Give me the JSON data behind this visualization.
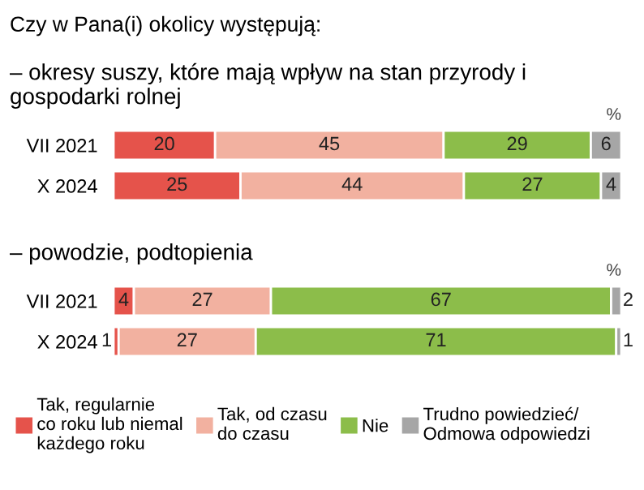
{
  "chart_data": [
    {
      "type": "bar",
      "orientation": "horizontal",
      "stacked": true,
      "data_labels": true,
      "tick_labels": "y",
      "legend": false,
      "title": "– okresy suszy, które mają wpływ na stan przyrody i gospodarki rolnej",
      "annotations": [
        "Czy w Pana(i) okolicy występują:",
        "%"
      ],
      "categories": [
        "VII 2021",
        "X 2024"
      ],
      "series": [
        {
          "color": "#e5534b",
          "values": [
            20,
            25
          ]
        },
        {
          "color": "#f2b1a0",
          "values": [
            45,
            44
          ]
        },
        {
          "color": "#8cbd4a",
          "values": [
            29,
            27
          ]
        },
        {
          "color": "#a6a6a6",
          "values": [
            6,
            4
          ]
        }
      ]
    },
    {
      "type": "bar",
      "orientation": "horizontal",
      "stacked": true,
      "data_labels": true,
      "tick_labels": "y",
      "legend": "bottom",
      "title": "– powodzie, podtopienia",
      "annotations": [
        "%"
      ],
      "categories": [
        "VII 2021",
        "X 2024"
      ],
      "series": [
        {
          "name": "Tak, regularnie\nco roku lub niemal\nkażdego roku",
          "color": "#e5534b",
          "values": [
            4,
            1
          ]
        },
        {
          "name": "Tak, od czasu\ndo czasu",
          "color": "#f2b1a0",
          "values": [
            27,
            27
          ]
        },
        {
          "name": "Nie",
          "color": "#8cbd4a",
          "values": [
            67,
            71
          ]
        },
        {
          "name": "Trudno powiedzieć/\nOdmowa odpowiedzi",
          "color": "#a6a6a6",
          "values": [
            2,
            1
          ]
        }
      ]
    }
  ]
}
